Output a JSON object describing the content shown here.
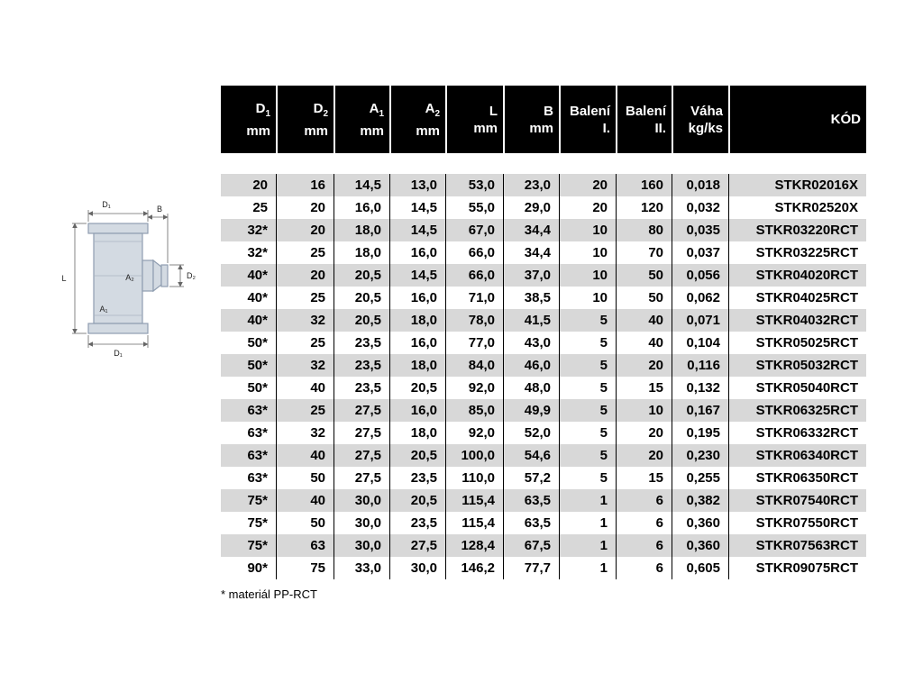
{
  "colors": {
    "header_bg": "#000000",
    "header_text": "#ffffff",
    "row_alt": "#d8d8d8",
    "row_default": "#ffffff",
    "drawing_fill": "#d3dae2",
    "drawing_stroke": "#8f9db0"
  },
  "diagram": {
    "labels": {
      "d1_top": "D₁",
      "b": "B",
      "l": "L",
      "a2": "A₂",
      "d2": "D₂",
      "a1": "A₁",
      "d1_bottom": "D₁"
    }
  },
  "table": {
    "columns": [
      {
        "key": "d1",
        "main": "D",
        "sub": "1",
        "unit": "mm"
      },
      {
        "key": "d2",
        "main": "D",
        "sub": "2",
        "unit": "mm"
      },
      {
        "key": "a1",
        "main": "A",
        "sub": "1",
        "unit": "mm"
      },
      {
        "key": "a2",
        "main": "A",
        "sub": "2",
        "unit": "mm"
      },
      {
        "key": "l",
        "main": "L",
        "sub": "",
        "unit": "mm"
      },
      {
        "key": "b",
        "main": "B",
        "sub": "",
        "unit": "mm"
      },
      {
        "key": "baleni-i",
        "main": "Balení",
        "sub": "",
        "unit": "I."
      },
      {
        "key": "baleni-ii",
        "main": "Balení",
        "sub": "",
        "unit": "II."
      },
      {
        "key": "vaha",
        "main": "Váha",
        "sub": "",
        "unit": "kg/ks"
      },
      {
        "key": "kod",
        "main": "KÓD",
        "sub": "",
        "unit": ""
      }
    ],
    "rows": [
      [
        "20",
        "16",
        "14,5",
        "13,0",
        "53,0",
        "23,0",
        "20",
        "160",
        "0,018",
        "STKR02016X"
      ],
      [
        "25",
        "20",
        "16,0",
        "14,5",
        "55,0",
        "29,0",
        "20",
        "120",
        "0,032",
        "STKR02520X"
      ],
      [
        "32*",
        "20",
        "18,0",
        "14,5",
        "67,0",
        "34,4",
        "10",
        "80",
        "0,035",
        "STKR03220RCT"
      ],
      [
        "32*",
        "25",
        "18,0",
        "16,0",
        "66,0",
        "34,4",
        "10",
        "70",
        "0,037",
        "STKR03225RCT"
      ],
      [
        "40*",
        "20",
        "20,5",
        "14,5",
        "66,0",
        "37,0",
        "10",
        "50",
        "0,056",
        "STKR04020RCT"
      ],
      [
        "40*",
        "25",
        "20,5",
        "16,0",
        "71,0",
        "38,5",
        "10",
        "50",
        "0,062",
        "STKR04025RCT"
      ],
      [
        "40*",
        "32",
        "20,5",
        "18,0",
        "78,0",
        "41,5",
        "5",
        "40",
        "0,071",
        "STKR04032RCT"
      ],
      [
        "50*",
        "25",
        "23,5",
        "16,0",
        "77,0",
        "43,0",
        "5",
        "40",
        "0,104",
        "STKR05025RCT"
      ],
      [
        "50*",
        "32",
        "23,5",
        "18,0",
        "84,0",
        "46,0",
        "5",
        "20",
        "0,116",
        "STKR05032RCT"
      ],
      [
        "50*",
        "40",
        "23,5",
        "20,5",
        "92,0",
        "48,0",
        "5",
        "15",
        "0,132",
        "STKR05040RCT"
      ],
      [
        "63*",
        "25",
        "27,5",
        "16,0",
        "85,0",
        "49,9",
        "5",
        "10",
        "0,167",
        "STKR06325RCT"
      ],
      [
        "63*",
        "32",
        "27,5",
        "18,0",
        "92,0",
        "52,0",
        "5",
        "20",
        "0,195",
        "STKR06332RCT"
      ],
      [
        "63*",
        "40",
        "27,5",
        "20,5",
        "100,0",
        "54,6",
        "5",
        "20",
        "0,230",
        "STKR06340RCT"
      ],
      [
        "63*",
        "50",
        "27,5",
        "23,5",
        "110,0",
        "57,2",
        "5",
        "15",
        "0,255",
        "STKR06350RCT"
      ],
      [
        "75*",
        "40",
        "30,0",
        "20,5",
        "115,4",
        "63,5",
        "1",
        "6",
        "0,382",
        "STKR07540RCT"
      ],
      [
        "75*",
        "50",
        "30,0",
        "23,5",
        "115,4",
        "63,5",
        "1",
        "6",
        "0,360",
        "STKR07550RCT"
      ],
      [
        "75*",
        "63",
        "30,0",
        "27,5",
        "128,4",
        "67,5",
        "1",
        "6",
        "0,360",
        "STKR07563RCT"
      ],
      [
        "90*",
        "75",
        "33,0",
        "30,0",
        "146,2",
        "77,7",
        "1",
        "6",
        "0,605",
        "STKR09075RCT"
      ]
    ]
  },
  "footnote": "* materiál PP-RCT"
}
